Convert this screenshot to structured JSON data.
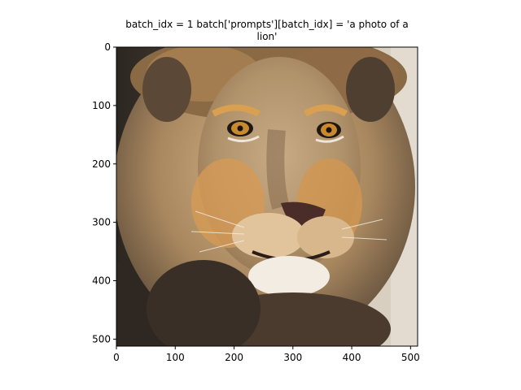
{
  "figure": {
    "title_line1": "batch_idx = 1 batch['prompts'][batch_idx] = 'a photo of a",
    "title_line2": "lion'",
    "subject": "lion-face-photo"
  },
  "axes": {
    "x_ticks": [
      "0",
      "100",
      "200",
      "300",
      "400",
      "500"
    ],
    "y_ticks": [
      "0",
      "100",
      "200",
      "300",
      "400",
      "500"
    ],
    "xlim": [
      0,
      512
    ],
    "ylim": [
      512,
      0
    ]
  },
  "colors": {
    "mane_dark": "#3a2f26",
    "mane_mid": "#9a7a55",
    "mane_light": "#d2b184",
    "fur": "#c99a5c",
    "face": "#b89a72",
    "eye": "#c98a2e",
    "nose": "#4a2c28",
    "muzzle": "#efe9e0",
    "bg_right": "#d9d0c2"
  }
}
